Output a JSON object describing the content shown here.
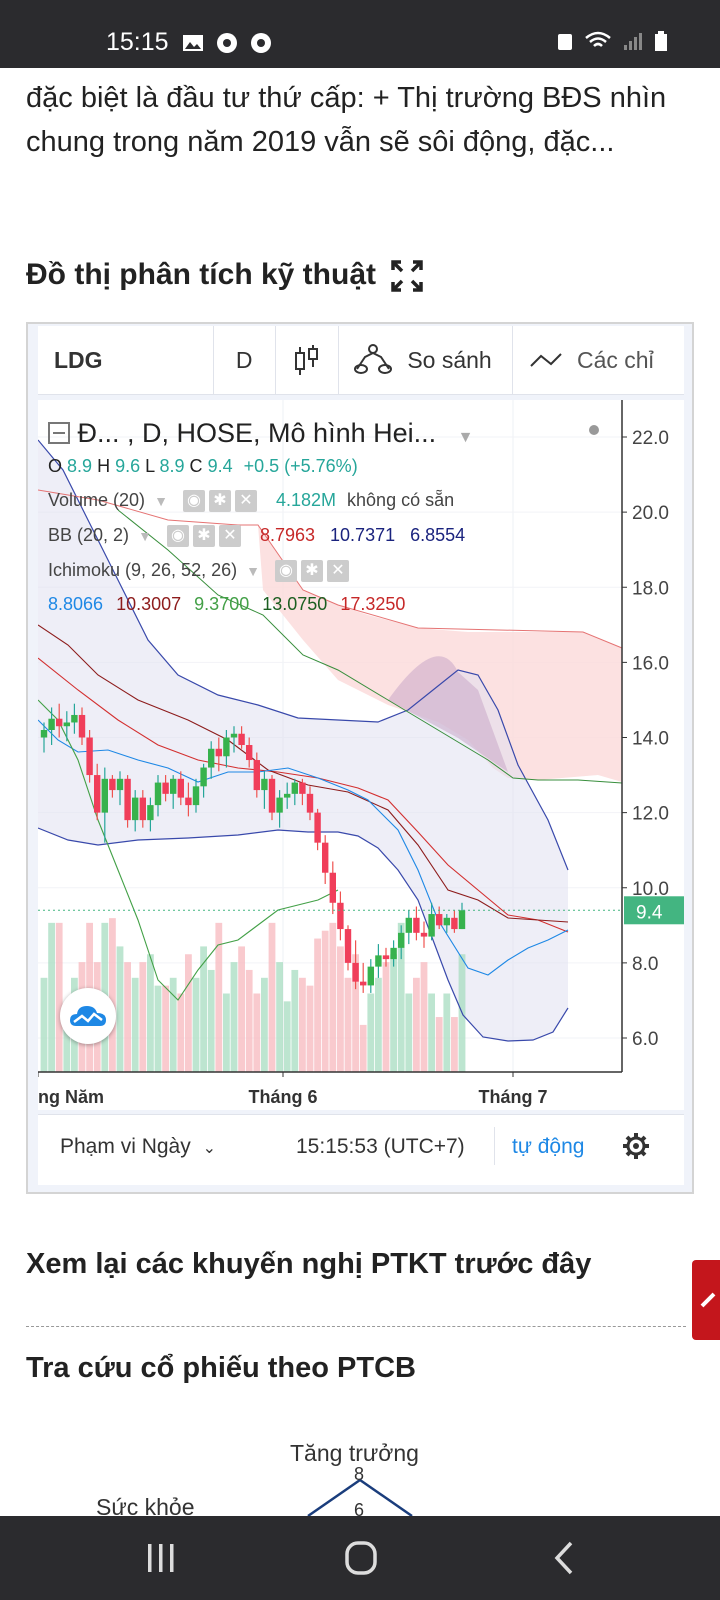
{
  "status_bar": {
    "time": "15:15"
  },
  "article": {
    "snippet": "đặc biệt là đầu tư thứ cấp: + Thị trường BĐS nhìn chung trong năm 2019 vẫn sẽ sôi động, đặc..."
  },
  "section_technical": {
    "title": "Đồ thị phân tích kỹ thuật"
  },
  "chart_widget": {
    "toolbar": {
      "symbol": "LDG",
      "interval": "D",
      "compare": "So sánh",
      "indicators": "Các chỉ"
    },
    "legend": {
      "title": "Đ...  , D, HOSE, Mô hình Hei...",
      "ohlc": {
        "o_label": "O",
        "o": "8.9",
        "h_label": "H",
        "h": "9.6",
        "l_label": "L",
        "l": "8.9",
        "c_label": "C",
        "c": "9.4",
        "change": "+0.5 (+5.76%)"
      },
      "volume": {
        "name": "Volume (20)",
        "value": "4.182M",
        "note": "không có sẵn"
      },
      "bb": {
        "name": "BB (20, 2)",
        "v1": "8.7963",
        "v2": "10.7371",
        "v3": "6.8554"
      },
      "ichimoku": {
        "name": "Ichimoku (9, 26, 52, 26)",
        "v1": "8.8066",
        "v2": "10.3007",
        "v3": "9.3700",
        "v4": "13.0750",
        "v5": "17.3250"
      }
    },
    "price_axis": [
      "22.0",
      "20.0",
      "18.0",
      "16.0",
      "14.0",
      "12.0",
      "10.0",
      "8.0",
      "6.0"
    ],
    "last_price": "9.4",
    "time_axis": [
      "ng Năm",
      "Tháng 6",
      "Tháng 7"
    ],
    "bottom": {
      "range": "Phạm vi Ngày",
      "clock": "15:15:53 (UTC+7)",
      "auto": "tự động"
    },
    "colors": {
      "up": "#26a69a",
      "down": "#ef5350",
      "bb_fill": "#e0e0f0",
      "cloud_red": "#fbdada",
      "last_price": "#43b581"
    }
  },
  "chart_data": {
    "type": "candlestick",
    "ylim": [
      5.0,
      23.0
    ],
    "x_ticks": [
      "ng Năm",
      "Tháng 6",
      "Tháng 7"
    ],
    "last_close": 9.4,
    "candles_ohlc": [
      [
        14.0,
        14.4,
        13.6,
        14.2
      ],
      [
        14.2,
        14.8,
        13.8,
        14.5
      ],
      [
        14.5,
        14.9,
        14.0,
        14.3
      ],
      [
        14.3,
        14.7,
        13.9,
        14.4
      ],
      [
        14.4,
        14.9,
        14.1,
        14.6
      ],
      [
        14.6,
        14.8,
        13.8,
        14.0
      ],
      [
        14.0,
        14.2,
        12.8,
        13.0
      ],
      [
        13.0,
        13.3,
        11.8,
        12.0
      ],
      [
        12.0,
        13.2,
        11.2,
        12.9
      ],
      [
        12.9,
        13.0,
        12.4,
        12.6
      ],
      [
        12.6,
        13.1,
        12.2,
        12.9
      ],
      [
        12.9,
        13.0,
        11.6,
        11.8
      ],
      [
        11.8,
        12.6,
        11.5,
        12.4
      ],
      [
        12.4,
        12.6,
        11.6,
        11.8
      ],
      [
        11.8,
        12.4,
        11.5,
        12.2
      ],
      [
        12.2,
        13.0,
        11.9,
        12.8
      ],
      [
        12.8,
        13.0,
        12.3,
        12.5
      ],
      [
        12.5,
        13.0,
        12.1,
        12.9
      ],
      [
        12.9,
        13.1,
        12.2,
        12.4
      ],
      [
        12.4,
        12.8,
        11.9,
        12.2
      ],
      [
        12.2,
        12.9,
        12.0,
        12.7
      ],
      [
        12.7,
        13.3,
        12.4,
        13.2
      ],
      [
        13.2,
        13.9,
        12.9,
        13.7
      ],
      [
        13.7,
        14.0,
        13.1,
        13.5
      ],
      [
        13.5,
        14.2,
        13.2,
        14.0
      ],
      [
        14.0,
        14.3,
        13.6,
        14.1
      ],
      [
        14.1,
        14.3,
        13.7,
        13.8
      ],
      [
        13.8,
        14.0,
        13.2,
        13.4
      ],
      [
        13.4,
        13.6,
        12.4,
        12.6
      ],
      [
        12.6,
        13.1,
        12.1,
        12.9
      ],
      [
        12.9,
        13.0,
        11.8,
        12.0
      ],
      [
        12.0,
        12.6,
        11.6,
        12.4
      ],
      [
        12.4,
        12.8,
        12.1,
        12.5
      ],
      [
        12.5,
        12.9,
        12.2,
        12.8
      ],
      [
        12.8,
        12.9,
        12.2,
        12.5
      ],
      [
        12.5,
        12.7,
        11.8,
        12.0
      ],
      [
        12.0,
        12.1,
        11.0,
        11.2
      ],
      [
        11.2,
        11.4,
        10.1,
        10.4
      ],
      [
        10.4,
        10.7,
        9.3,
        9.6
      ],
      [
        9.6,
        9.9,
        8.6,
        8.9
      ],
      [
        8.9,
        9.0,
        7.8,
        8.0
      ],
      [
        8.0,
        8.6,
        7.3,
        7.5
      ],
      [
        7.5,
        8.0,
        7.2,
        7.4
      ],
      [
        7.4,
        8.1,
        7.2,
        7.9
      ],
      [
        7.9,
        8.5,
        7.6,
        8.2
      ],
      [
        8.2,
        8.4,
        7.9,
        8.1
      ],
      [
        8.1,
        8.6,
        7.9,
        8.4
      ],
      [
        8.4,
        9.0,
        8.1,
        8.8
      ],
      [
        8.8,
        9.4,
        8.5,
        9.2
      ],
      [
        9.2,
        9.5,
        8.6,
        8.8
      ],
      [
        8.8,
        9.1,
        8.4,
        8.7
      ],
      [
        8.7,
        9.6,
        8.6,
        9.3
      ],
      [
        9.3,
        9.5,
        8.9,
        9.0
      ],
      [
        9.0,
        9.3,
        8.8,
        9.2
      ],
      [
        9.2,
        9.4,
        8.8,
        8.9
      ],
      [
        8.9,
        9.6,
        8.9,
        9.4
      ]
    ],
    "volume_relative": [
      0.6,
      0.95,
      0.95,
      0.3,
      0.6,
      0.7,
      0.95,
      0.7,
      0.95,
      0.98,
      0.8,
      0.7,
      0.6,
      0.7,
      0.75,
      0.55,
      0.55,
      0.6,
      0.5,
      0.75,
      0.6,
      0.8,
      0.65,
      0.95,
      0.5,
      0.7,
      0.8,
      0.65,
      0.5,
      0.6,
      0.95,
      0.7,
      0.45,
      0.65,
      0.6,
      0.55,
      0.85,
      0.9,
      0.95,
      0.8,
      0.6,
      0.75,
      0.3,
      0.5,
      0.6,
      0.7,
      0.75,
      0.95,
      0.5,
      0.6,
      0.7,
      0.5,
      0.35,
      0.5,
      0.35,
      0.75
    ]
  },
  "section_reviews": {
    "title": "Xem lại các khuyến nghị PTKT trước đây"
  },
  "section_lookup": {
    "title": "Tra cứu cổ phiếu theo PTCB"
  },
  "radar": {
    "label_top": "Tăng trưởng",
    "label_left": "Sức khỏe",
    "tick_8": "8",
    "tick_6": "6"
  }
}
